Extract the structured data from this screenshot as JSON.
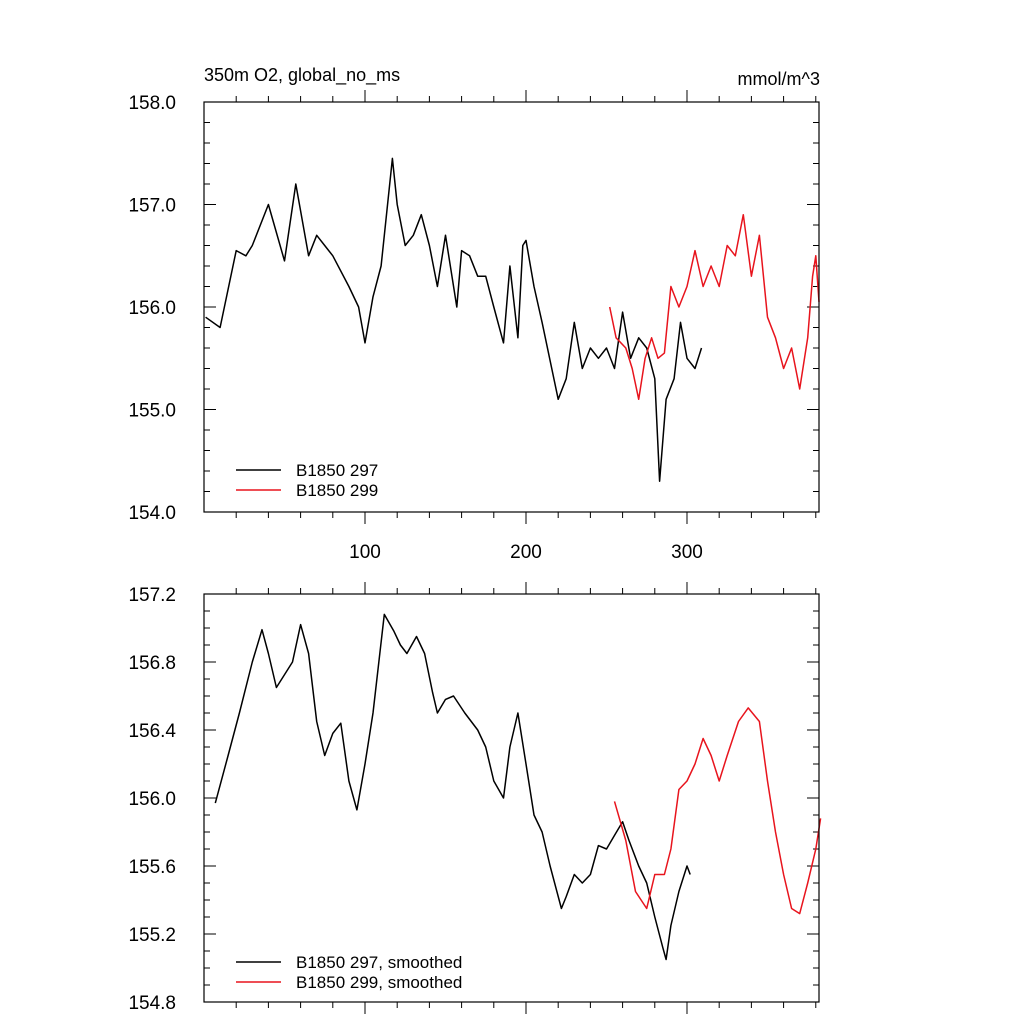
{
  "chart_data": [
    {
      "type": "line",
      "title": "350m O2, global_no_ms",
      "units_label": "mmol/m^3",
      "xlim": [
        0,
        382
      ],
      "ylim": [
        154.0,
        158.0
      ],
      "xticks": [
        100,
        200,
        300
      ],
      "xtick_labels": [
        "100",
        "200",
        "300"
      ],
      "yticks": [
        154.0,
        155.0,
        156.0,
        157.0,
        158.0
      ],
      "ytick_labels": [
        "154.0",
        "155.0",
        "156.0",
        "157.0",
        "158.0"
      ],
      "legend_position": "bottom-left",
      "series": [
        {
          "name": "B1850 297",
          "color": "#000000",
          "x": [
            1,
            10,
            20,
            26,
            30,
            40,
            50,
            57,
            65,
            70,
            75,
            80,
            90,
            96,
            100,
            105,
            110,
            117,
            120,
            125,
            130,
            135,
            140,
            145,
            150,
            157,
            160,
            165,
            170,
            175,
            180,
            186,
            190,
            195,
            198,
            200,
            205,
            210,
            220,
            225,
            230,
            235,
            240,
            245,
            250,
            255,
            260,
            265,
            270,
            275,
            280,
            283,
            287,
            292,
            296,
            300,
            305,
            309
          ],
          "y": [
            155.9,
            155.8,
            156.55,
            156.5,
            156.6,
            157.0,
            156.45,
            157.2,
            156.5,
            156.7,
            156.6,
            156.5,
            156.2,
            156.0,
            155.65,
            156.1,
            156.4,
            157.45,
            157.0,
            156.6,
            156.7,
            156.9,
            156.6,
            156.2,
            156.7,
            156.0,
            156.55,
            156.5,
            156.3,
            156.3,
            156.0,
            155.65,
            156.4,
            155.7,
            156.6,
            156.65,
            156.2,
            155.85,
            155.1,
            155.3,
            155.85,
            155.4,
            155.6,
            155.5,
            155.6,
            155.4,
            155.95,
            155.5,
            155.7,
            155.6,
            155.3,
            154.3,
            155.1,
            155.3,
            155.85,
            155.5,
            155.4,
            155.6
          ]
        },
        {
          "name": "B1850 299",
          "color": "#e8141d",
          "x": [
            252,
            256,
            262,
            266,
            270,
            274,
            278,
            282,
            286,
            290,
            295,
            300,
            305,
            310,
            315,
            320,
            325,
            330,
            335,
            340,
            345,
            350,
            355,
            360,
            365,
            370,
            375,
            378,
            380,
            382
          ],
          "y": [
            156.0,
            155.7,
            155.6,
            155.4,
            155.1,
            155.5,
            155.7,
            155.5,
            155.55,
            156.2,
            156.0,
            156.2,
            156.55,
            156.2,
            156.4,
            156.2,
            156.6,
            156.5,
            156.9,
            156.3,
            156.7,
            155.9,
            155.7,
            155.4,
            155.6,
            155.2,
            155.7,
            156.3,
            156.5,
            156.05
          ]
        }
      ]
    },
    {
      "type": "line",
      "title": "",
      "xlim": [
        0,
        382
      ],
      "ylim": [
        154.8,
        157.2
      ],
      "yticks": [
        154.8,
        155.2,
        155.6,
        156.0,
        156.4,
        156.8,
        157.2
      ],
      "ytick_labels": [
        "154.8",
        "155.2",
        "155.6",
        "156.0",
        "156.4",
        "156.8",
        "157.2"
      ],
      "xticks": [
        100,
        200,
        300
      ],
      "legend_position": "bottom-left",
      "series": [
        {
          "name": "B1850 297, smoothed",
          "color": "#000000",
          "x": [
            7,
            15,
            22,
            30,
            36,
            40,
            45,
            55,
            60,
            65,
            70,
            75,
            80,
            85,
            90,
            95,
            100,
            105,
            112,
            118,
            122,
            126,
            132,
            137,
            142,
            145,
            150,
            155,
            162,
            170,
            175,
            180,
            186,
            190,
            195,
            200,
            205,
            210,
            215,
            222,
            225,
            230,
            235,
            240,
            245,
            250,
            255,
            260,
            264,
            270,
            275,
            280,
            285,
            287,
            290,
            295,
            300,
            302
          ],
          "y": [
            155.97,
            156.25,
            156.5,
            156.8,
            156.99,
            156.85,
            156.65,
            156.8,
            157.02,
            156.85,
            156.45,
            156.25,
            156.38,
            156.44,
            156.1,
            155.93,
            156.2,
            156.5,
            157.08,
            156.98,
            156.9,
            156.85,
            156.95,
            156.85,
            156.62,
            156.5,
            156.58,
            156.6,
            156.5,
            156.4,
            156.3,
            156.1,
            156.0,
            156.3,
            156.5,
            156.2,
            155.9,
            155.8,
            155.6,
            155.35,
            155.42,
            155.55,
            155.5,
            155.55,
            155.72,
            155.7,
            155.78,
            155.86,
            155.75,
            155.6,
            155.5,
            155.3,
            155.12,
            155.05,
            155.25,
            155.45,
            155.6,
            155.55
          ]
        },
        {
          "name": "B1850 299, smoothed",
          "color": "#e8141d",
          "x": [
            255,
            262,
            268,
            275,
            280,
            286,
            290,
            295,
            300,
            305,
            310,
            315,
            320,
            325,
            332,
            338,
            345,
            350,
            355,
            360,
            365,
            370,
            375,
            380,
            383
          ],
          "y": [
            155.98,
            155.75,
            155.45,
            155.35,
            155.55,
            155.55,
            155.7,
            156.05,
            156.1,
            156.2,
            156.35,
            156.25,
            156.1,
            156.25,
            156.45,
            156.53,
            156.45,
            156.1,
            155.8,
            155.55,
            155.35,
            155.32,
            155.5,
            155.7,
            155.88
          ]
        }
      ]
    }
  ]
}
